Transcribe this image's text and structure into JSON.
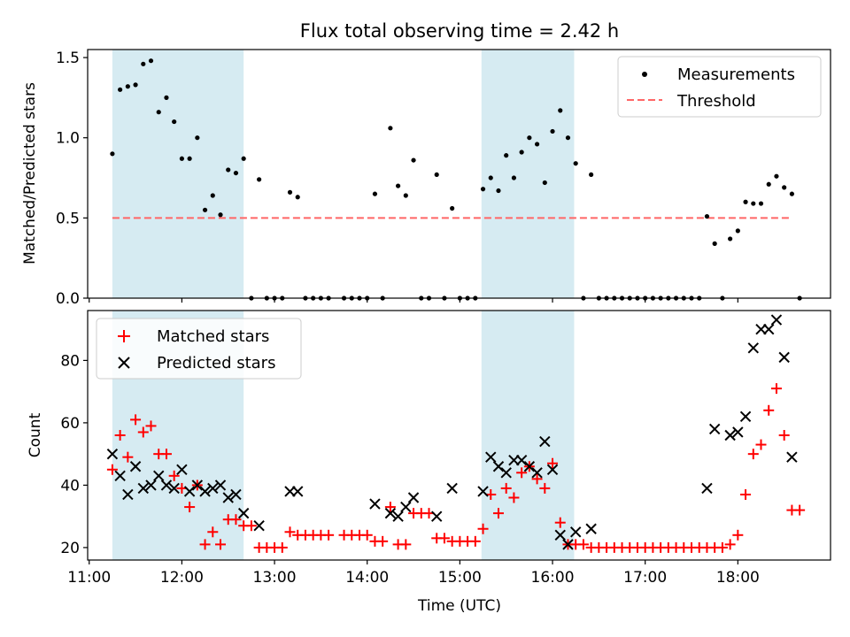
{
  "figure": {
    "title": "Flux total observing time = 2.42 h"
  },
  "colors": {
    "span": "#add8e6",
    "threshold": "#ff6666",
    "measurement": "#000000",
    "matched": "#ff0000",
    "predicted": "#000000"
  },
  "chart_data": [
    {
      "type": "scatter",
      "ylabel": "Matched/Predicted stars",
      "ylim": [
        0,
        1.55
      ],
      "xlim": [
        "10:59",
        "19:00"
      ],
      "y_ticks": [
        0.0,
        0.5,
        1.0,
        1.5
      ],
      "y_tick_labels": [
        "0.0",
        "0.5",
        "1.0",
        "1.5"
      ],
      "legend": {
        "placement": "top-right",
        "entries": [
          "Measurements",
          "Threshold"
        ]
      },
      "shaded_intervals": [
        [
          "11:15",
          "12:40"
        ],
        [
          "15:14",
          "16:14"
        ]
      ],
      "threshold": {
        "name": "Threshold",
        "value": 0.5,
        "x_range": [
          "11:15",
          "18:35"
        ]
      },
      "series": [
        {
          "name": "Measurements",
          "points": [
            [
              "11:15",
              0.9
            ],
            [
              "11:20",
              1.3
            ],
            [
              "11:25",
              1.32
            ],
            [
              "11:30",
              1.33
            ],
            [
              "11:35",
              1.46
            ],
            [
              "11:40",
              1.48
            ],
            [
              "11:45",
              1.16
            ],
            [
              "11:50",
              1.25
            ],
            [
              "11:55",
              1.1
            ],
            [
              "12:00",
              0.87
            ],
            [
              "12:05",
              0.87
            ],
            [
              "12:10",
              1.0
            ],
            [
              "12:15",
              0.55
            ],
            [
              "12:20",
              0.64
            ],
            [
              "12:25",
              0.52
            ],
            [
              "12:30",
              0.8
            ],
            [
              "12:35",
              0.78
            ],
            [
              "12:40",
              0.87
            ],
            [
              "12:45",
              0.0
            ],
            [
              "12:50",
              0.74
            ],
            [
              "12:55",
              0.0
            ],
            [
              "13:00",
              0.0
            ],
            [
              "13:05",
              0.0
            ],
            [
              "13:10",
              0.66
            ],
            [
              "13:15",
              0.63
            ],
            [
              "13:20",
              0.0
            ],
            [
              "13:25",
              0.0
            ],
            [
              "13:30",
              0.0
            ],
            [
              "13:35",
              0.0
            ],
            [
              "13:45",
              0.0
            ],
            [
              "13:50",
              0.0
            ],
            [
              "13:55",
              0.0
            ],
            [
              "14:00",
              0.0
            ],
            [
              "14:05",
              0.65
            ],
            [
              "14:10",
              0.0
            ],
            [
              "14:15",
              1.06
            ],
            [
              "14:20",
              0.7
            ],
            [
              "14:25",
              0.64
            ],
            [
              "14:30",
              0.86
            ],
            [
              "14:35",
              0.0
            ],
            [
              "14:40",
              0.0
            ],
            [
              "14:45",
              0.77
            ],
            [
              "14:50",
              0.0
            ],
            [
              "14:55",
              0.56
            ],
            [
              "15:00",
              0.0
            ],
            [
              "15:05",
              0.0
            ],
            [
              "15:10",
              0.0
            ],
            [
              "15:15",
              0.68
            ],
            [
              "15:20",
              0.75
            ],
            [
              "15:25",
              0.67
            ],
            [
              "15:30",
              0.89
            ],
            [
              "15:35",
              0.75
            ],
            [
              "15:40",
              0.91
            ],
            [
              "15:45",
              1.0
            ],
            [
              "15:50",
              0.96
            ],
            [
              "15:55",
              0.72
            ],
            [
              "16:00",
              1.04
            ],
            [
              "16:05",
              1.17
            ],
            [
              "16:10",
              1.0
            ],
            [
              "16:15",
              0.84
            ],
            [
              "16:20",
              0.0
            ],
            [
              "16:25",
              0.77
            ],
            [
              "16:30",
              0.0
            ],
            [
              "16:35",
              0.0
            ],
            [
              "16:40",
              0.0
            ],
            [
              "16:45",
              0.0
            ],
            [
              "16:50",
              0.0
            ],
            [
              "16:55",
              0.0
            ],
            [
              "17:00",
              0.0
            ],
            [
              "17:05",
              0.0
            ],
            [
              "17:10",
              0.0
            ],
            [
              "17:15",
              0.0
            ],
            [
              "17:20",
              0.0
            ],
            [
              "17:25",
              0.0
            ],
            [
              "17:30",
              0.0
            ],
            [
              "17:35",
              0.0
            ],
            [
              "17:40",
              0.51
            ],
            [
              "17:45",
              0.34
            ],
            [
              "17:50",
              0.0
            ],
            [
              "17:55",
              0.37
            ],
            [
              "18:00",
              0.42
            ],
            [
              "18:05",
              0.6
            ],
            [
              "18:10",
              0.59
            ],
            [
              "18:15",
              0.59
            ],
            [
              "18:20",
              0.71
            ],
            [
              "18:25",
              0.76
            ],
            [
              "18:30",
              0.69
            ],
            [
              "18:35",
              0.65
            ],
            [
              "18:40",
              0.0
            ]
          ]
        }
      ]
    },
    {
      "type": "scatter",
      "xlabel": "Time (UTC)",
      "ylabel": "Count",
      "ylim": [
        16,
        96
      ],
      "xlim": [
        "10:59",
        "19:00"
      ],
      "y_ticks": [
        20,
        40,
        60,
        80
      ],
      "y_tick_labels": [
        "20",
        "40",
        "60",
        "80"
      ],
      "x_ticks": [
        "11:00",
        "12:00",
        "13:00",
        "14:00",
        "15:00",
        "16:00",
        "17:00",
        "18:00"
      ],
      "x_tick_labels": [
        "11:00",
        "12:00",
        "13:00",
        "14:00",
        "15:00",
        "16:00",
        "17:00",
        "18:00"
      ],
      "legend": {
        "placement": "top-left",
        "entries": [
          "Matched stars",
          "Predicted stars"
        ]
      },
      "shaded_intervals": [
        [
          "11:15",
          "12:40"
        ],
        [
          "15:14",
          "16:14"
        ]
      ],
      "series": [
        {
          "name": "Matched stars",
          "marker": "plus",
          "points": [
            [
              "11:15",
              45
            ],
            [
              "11:20",
              56
            ],
            [
              "11:25",
              49
            ],
            [
              "11:30",
              61
            ],
            [
              "11:35",
              57
            ],
            [
              "11:40",
              59
            ],
            [
              "11:45",
              50
            ],
            [
              "11:50",
              50
            ],
            [
              "11:55",
              43
            ],
            [
              "12:00",
              39
            ],
            [
              "12:05",
              33
            ],
            [
              "12:10",
              40
            ],
            [
              "12:15",
              21
            ],
            [
              "12:20",
              25
            ],
            [
              "12:25",
              21
            ],
            [
              "12:30",
              29
            ],
            [
              "12:35",
              29
            ],
            [
              "12:40",
              27
            ],
            [
              "12:45",
              27
            ],
            [
              "12:50",
              20
            ],
            [
              "12:55",
              20
            ],
            [
              "13:00",
              20
            ],
            [
              "13:05",
              20
            ],
            [
              "13:10",
              25
            ],
            [
              "13:15",
              24
            ],
            [
              "13:20",
              24
            ],
            [
              "13:25",
              24
            ],
            [
              "13:30",
              24
            ],
            [
              "13:35",
              24
            ],
            [
              "13:45",
              24
            ],
            [
              "13:50",
              24
            ],
            [
              "13:55",
              24
            ],
            [
              "14:00",
              24
            ],
            [
              "14:05",
              22
            ],
            [
              "14:10",
              22
            ],
            [
              "14:15",
              33
            ],
            [
              "14:20",
              21
            ],
            [
              "14:25",
              21
            ],
            [
              "14:30",
              31
            ],
            [
              "14:35",
              31
            ],
            [
              "14:40",
              31
            ],
            [
              "14:45",
              23
            ],
            [
              "14:50",
              23
            ],
            [
              "14:55",
              22
            ],
            [
              "15:00",
              22
            ],
            [
              "15:05",
              22
            ],
            [
              "15:10",
              22
            ],
            [
              "15:15",
              26
            ],
            [
              "15:20",
              37
            ],
            [
              "15:25",
              31
            ],
            [
              "15:30",
              39
            ],
            [
              "15:35",
              36
            ],
            [
              "15:40",
              44
            ],
            [
              "15:45",
              46
            ],
            [
              "15:50",
              42
            ],
            [
              "15:55",
              39
            ],
            [
              "16:00",
              47
            ],
            [
              "16:05",
              28
            ],
            [
              "16:10",
              21
            ],
            [
              "16:15",
              21
            ],
            [
              "16:20",
              21
            ],
            [
              "16:25",
              20
            ],
            [
              "16:30",
              20
            ],
            [
              "16:35",
              20
            ],
            [
              "16:40",
              20
            ],
            [
              "16:45",
              20
            ],
            [
              "16:50",
              20
            ],
            [
              "16:55",
              20
            ],
            [
              "17:00",
              20
            ],
            [
              "17:05",
              20
            ],
            [
              "17:10",
              20
            ],
            [
              "17:15",
              20
            ],
            [
              "17:20",
              20
            ],
            [
              "17:25",
              20
            ],
            [
              "17:30",
              20
            ],
            [
              "17:35",
              20
            ],
            [
              "17:40",
              20
            ],
            [
              "17:45",
              20
            ],
            [
              "17:50",
              20
            ],
            [
              "17:55",
              21
            ],
            [
              "18:00",
              24
            ],
            [
              "18:05",
              37
            ],
            [
              "18:10",
              50
            ],
            [
              "18:15",
              53
            ],
            [
              "18:20",
              64
            ],
            [
              "18:25",
              71
            ],
            [
              "18:30",
              56
            ],
            [
              "18:35",
              32
            ],
            [
              "18:40",
              32
            ]
          ]
        },
        {
          "name": "Predicted stars",
          "marker": "x",
          "points": [
            [
              "11:15",
              50
            ],
            [
              "11:20",
              43
            ],
            [
              "11:25",
              37
            ],
            [
              "11:30",
              46
            ],
            [
              "11:35",
              39
            ],
            [
              "11:40",
              40
            ],
            [
              "11:45",
              43
            ],
            [
              "11:50",
              40
            ],
            [
              "11:55",
              39
            ],
            [
              "12:00",
              45
            ],
            [
              "12:05",
              38
            ],
            [
              "12:10",
              40
            ],
            [
              "12:15",
              38
            ],
            [
              "12:20",
              39
            ],
            [
              "12:25",
              40
            ],
            [
              "12:30",
              36
            ],
            [
              "12:35",
              37
            ],
            [
              "12:40",
              31
            ],
            [
              "12:50",
              27
            ],
            [
              "13:10",
              38
            ],
            [
              "13:15",
              38
            ],
            [
              "14:05",
              34
            ],
            [
              "14:15",
              31
            ],
            [
              "14:20",
              30
            ],
            [
              "14:25",
              33
            ],
            [
              "14:30",
              36
            ],
            [
              "14:45",
              30
            ],
            [
              "14:55",
              39
            ],
            [
              "15:15",
              38
            ],
            [
              "15:20",
              49
            ],
            [
              "15:25",
              46
            ],
            [
              "15:30",
              44
            ],
            [
              "15:35",
              48
            ],
            [
              "15:40",
              48
            ],
            [
              "15:45",
              46
            ],
            [
              "15:50",
              44
            ],
            [
              "15:55",
              54
            ],
            [
              "16:00",
              45
            ],
            [
              "16:05",
              24
            ],
            [
              "16:10",
              21
            ],
            [
              "16:15",
              25
            ],
            [
              "16:25",
              26
            ],
            [
              "17:40",
              39
            ],
            [
              "17:45",
              58
            ],
            [
              "17:55",
              56
            ],
            [
              "18:00",
              57
            ],
            [
              "18:05",
              62
            ],
            [
              "18:10",
              84
            ],
            [
              "18:15",
              90
            ],
            [
              "18:20",
              90
            ],
            [
              "18:25",
              93
            ],
            [
              "18:30",
              81
            ],
            [
              "18:35",
              49
            ]
          ]
        }
      ]
    }
  ]
}
